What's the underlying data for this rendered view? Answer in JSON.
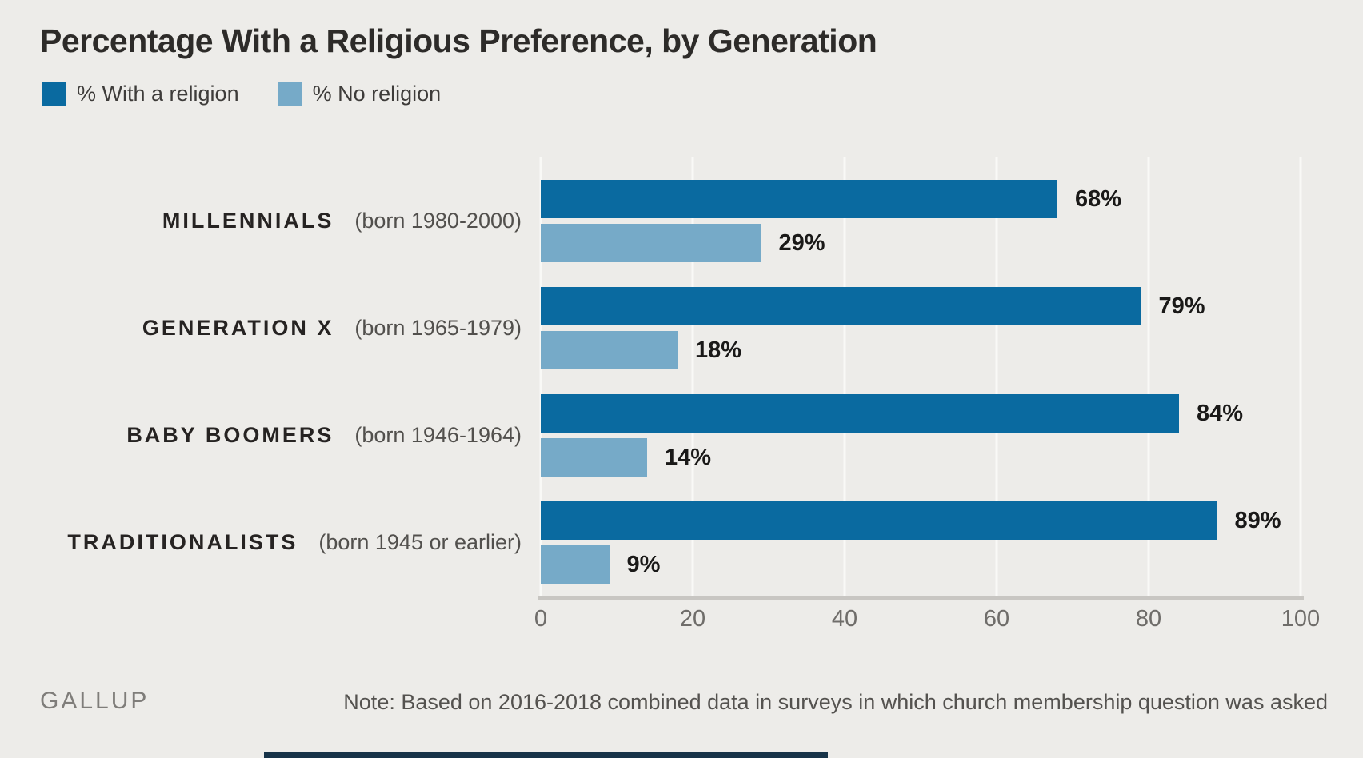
{
  "title": "Percentage With a Religious Preference, by Generation",
  "legend": {
    "with_religion": "% With a religion",
    "no_religion": "% No religion"
  },
  "rows": [
    {
      "name": "MILLENNIALS",
      "sub": "(born 1980-2000)",
      "with_label": "68%",
      "no_label": "29%"
    },
    {
      "name": "GENERATION X",
      "sub": "(born 1965-1979)",
      "with_label": "79%",
      "no_label": "18%"
    },
    {
      "name": "BABY BOOMERS",
      "sub": "(born 1946-1964)",
      "with_label": "84%",
      "no_label": "14%"
    },
    {
      "name": "TRADITIONALISTS",
      "sub": "(born 1945 or earlier)",
      "with_label": "89%",
      "no_label": "9%"
    }
  ],
  "axis": {
    "ticks": [
      "0",
      "20",
      "40",
      "60",
      "80",
      "100"
    ]
  },
  "footer": {
    "brand": "GALLUP",
    "note": "Note: Based on 2016-2018 combined data in surveys in which church membership question was asked"
  },
  "colors": {
    "background": "#edece9",
    "with_religion_bar": "#0a6aa0",
    "no_religion_bar": "#76aac8",
    "gridline": "#f9f9f6",
    "axis_line": "#c8c6c2"
  },
  "chart_data": {
    "type": "bar",
    "orientation": "horizontal",
    "title": "Percentage With a Religious Preference, by Generation",
    "categories": [
      "Millennials (born 1980-2000)",
      "Generation X (born 1965-1979)",
      "Baby Boomers (born 1946-1964)",
      "Traditionalists (born 1945 or earlier)"
    ],
    "series": [
      {
        "name": "% With a religion",
        "color": "#0a6aa0",
        "values": [
          68,
          79,
          84,
          89
        ]
      },
      {
        "name": "% No religion",
        "color": "#76aac8",
        "values": [
          29,
          18,
          14,
          9
        ]
      }
    ],
    "xlabel": "",
    "ylabel": "",
    "xlim": [
      0,
      100
    ],
    "x_ticks": [
      0,
      20,
      40,
      60,
      80,
      100
    ],
    "grid": true,
    "legend_position": "top-left",
    "note": "Note: Based on 2016-2018 combined data in surveys in which church membership question was asked",
    "source": "GALLUP"
  }
}
